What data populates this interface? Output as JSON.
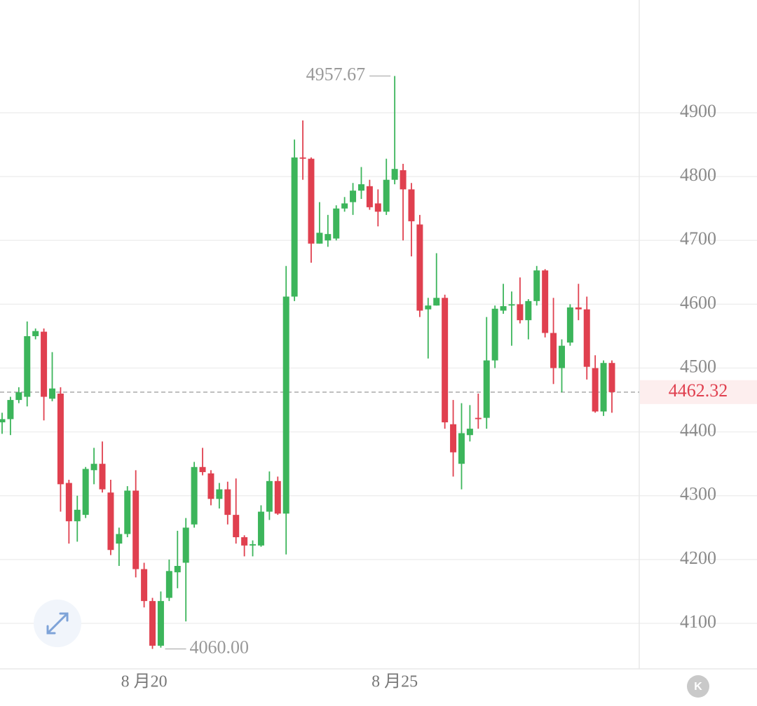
{
  "chart_data": {
    "type": "candlestick",
    "categories": [
      null,
      null,
      null,
      null,
      null,
      null,
      null,
      null,
      null,
      null,
      null,
      null,
      null,
      null,
      null,
      null,
      null,
      "8 月20",
      null,
      null,
      null,
      null,
      null,
      null,
      null,
      null,
      null,
      null,
      null,
      null,
      null,
      null,
      null,
      null,
      null,
      null,
      null,
      null,
      null,
      null,
      null,
      null,
      null,
      null,
      null,
      null,
      null,
      "8 月25",
      null,
      null,
      null,
      null,
      null,
      null,
      null,
      null,
      null,
      null,
      null,
      null,
      null,
      null,
      null,
      null,
      null,
      null,
      null,
      null,
      null,
      null,
      null,
      null,
      null,
      null
    ],
    "open": [
      4415,
      4420,
      4450,
      4455,
      4550,
      4557,
      4452,
      4460,
      4320,
      4260,
      4270,
      4340,
      4350,
      4305,
      4225,
      4240,
      4308,
      4185,
      4135,
      4065,
      4140,
      4180,
      4195,
      4255,
      4345,
      4335,
      4295,
      4310,
      4270,
      4235,
      4222,
      4222,
      4275,
      4323,
      4272,
      4612,
      4830,
      4828,
      4695,
      4700,
      4703,
      4750,
      4760,
      4778,
      4785,
      4758,
      4745,
      4795,
      4810,
      4780,
      4725,
      4592,
      4598,
      4610,
      4412,
      4350,
      4395,
      4422,
      4422,
      4512,
      4590,
      4598,
      4600,
      4575,
      4605,
      4653,
      4555,
      4500,
      4540,
      4595,
      4592,
      4500,
      4432,
      4508
    ],
    "high": [
      4430,
      4455,
      4470,
      4573,
      4562,
      4562,
      4525,
      4470,
      4325,
      4300,
      4345,
      4375,
      4385,
      4325,
      4250,
      4315,
      4340,
      4195,
      4140,
      4150,
      4200,
      4245,
      4265,
      4353,
      4375,
      4340,
      4320,
      4322,
      4327,
      4238,
      4230,
      4285,
      4338,
      4330,
      4660,
      4858,
      4888,
      4830,
      4760,
      4740,
      4755,
      4768,
      4790,
      4815,
      4795,
      4780,
      4828,
      4957.67,
      4820,
      4790,
      4740,
      4610,
      4680,
      4615,
      4450,
      4445,
      4442,
      4460,
      4580,
      4598,
      4632,
      4620,
      4642,
      4608,
      4660,
      4655,
      4610,
      4545,
      4600,
      4632,
      4612,
      4520,
      4512,
      4512
    ],
    "low": [
      4397,
      4395,
      4445,
      4440,
      4545,
      4418,
      4448,
      4275,
      4225,
      4228,
      4265,
      4318,
      4305,
      4207,
      4190,
      4235,
      4172,
      4125,
      4060,
      4062,
      4135,
      4155,
      4103,
      4250,
      4332,
      4285,
      4280,
      4255,
      4225,
      4205,
      4205,
      4220,
      4262,
      4270,
      4208,
      4605,
      4795,
      4665,
      4695,
      4690,
      4700,
      4745,
      4740,
      4765,
      4748,
      4722,
      4740,
      4788,
      4700,
      4675,
      4580,
      4515,
      4598,
      4405,
      4330,
      4310,
      4385,
      4405,
      4405,
      4500,
      4585,
      4535,
      4570,
      4545,
      4598,
      4548,
      4475,
      4462,
      4535,
      4575,
      4482,
      4430,
      4425,
      4430
    ],
    "close": [
      4420,
      4450,
      4462,
      4550,
      4558,
      4455,
      4468,
      4318,
      4260,
      4278,
      4342,
      4350,
      4310,
      4215,
      4240,
      4308,
      4185,
      4135,
      4065,
      4135,
      4182,
      4190,
      4250,
      4345,
      4337,
      4295,
      4310,
      4270,
      4235,
      4222,
      4224,
      4275,
      4323,
      4272,
      4612,
      4830,
      4828,
      4695,
      4712,
      4710,
      4750,
      4758,
      4778,
      4788,
      4752,
      4745,
      4795,
      4812,
      4780,
      4730,
      4590,
      4598,
      4610,
      4415,
      4368,
      4398,
      4405,
      4420,
      4512,
      4593,
      4597,
      4600,
      4575,
      4605,
      4653,
      4555,
      4500,
      4535,
      4595,
      4592,
      4502,
      4432,
      4508,
      4462.32
    ],
    "up_color": "#3cb55b",
    "down_color": "#e0404f",
    "ylim": [
      4028.7,
      5076.7
    ],
    "yticks": [
      4100,
      4200,
      4300,
      4400,
      4500,
      4600,
      4700,
      4800,
      4900
    ],
    "grid": true,
    "high_label": {
      "value": 4957.67,
      "label": "4957.67"
    },
    "low_label": {
      "value": 4060,
      "label": "4060.00"
    },
    "last_price": {
      "value": 4462.32,
      "label": "4462.32"
    }
  },
  "ui": {
    "badge": "K"
  }
}
